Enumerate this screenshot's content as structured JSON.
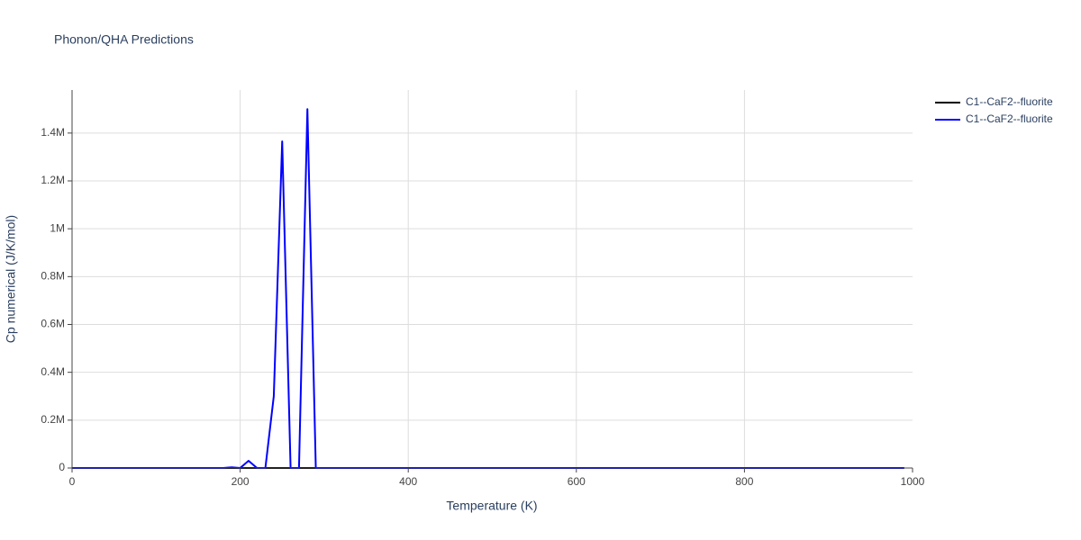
{
  "chart_data": {
    "type": "line",
    "title": "Phonon/QHA Predictions",
    "x_label": "Temperature (K)",
    "y_label": "Cp numerical (J/K/mol)",
    "x": [
      0,
      10,
      20,
      30,
      40,
      50,
      60,
      70,
      80,
      90,
      100,
      110,
      120,
      130,
      140,
      150,
      160,
      170,
      180,
      190,
      200,
      210,
      220,
      230,
      240,
      250,
      260,
      270,
      280,
      290,
      300,
      310,
      320,
      330,
      340,
      350,
      360,
      370,
      380,
      390,
      400,
      410,
      420,
      430,
      440,
      450,
      460,
      470,
      480,
      490,
      500,
      510,
      520,
      530,
      540,
      550,
      560,
      570,
      580,
      590,
      600,
      610,
      620,
      630,
      640,
      650,
      660,
      670,
      680,
      690,
      700,
      710,
      720,
      730,
      740,
      750,
      760,
      770,
      780,
      790,
      800,
      810,
      820,
      830,
      840,
      850,
      860,
      870,
      880,
      890,
      900,
      910,
      920,
      930,
      940,
      950,
      960,
      970,
      980,
      990
    ],
    "series": [
      {
        "name": "C1--CaF2--fluorite",
        "color": "#000000",
        "values": [
          0,
          0,
          0,
          0,
          0,
          0,
          0,
          0,
          0,
          0,
          0,
          0,
          0,
          0,
          0,
          0,
          0,
          0,
          0,
          0,
          0,
          0,
          0,
          0,
          0,
          0,
          0,
          0,
          0,
          0,
          0,
          0,
          0,
          0,
          0,
          0,
          0,
          0,
          0,
          0,
          0,
          0,
          0,
          0,
          0,
          0,
          0,
          0,
          0,
          0,
          0,
          0,
          0,
          0,
          0,
          0,
          0,
          0,
          0,
          0,
          0,
          0,
          0,
          0,
          0,
          0,
          0,
          0,
          0,
          0,
          0,
          0,
          0,
          0,
          0,
          0,
          0,
          0,
          0,
          0,
          0,
          0,
          0,
          0,
          0,
          0,
          0,
          0,
          0,
          0,
          0,
          0,
          0,
          0,
          0,
          0,
          0,
          0,
          0,
          0
        ]
      },
      {
        "name": "C1--CaF2--fluorite",
        "color": "#0000ff",
        "values": [
          0,
          0,
          0,
          0,
          0,
          0,
          0,
          0,
          0,
          0,
          0,
          0,
          0,
          0,
          0,
          0,
          0,
          0,
          0,
          3000,
          0,
          30000,
          0,
          0,
          300000,
          1365000,
          0,
          0,
          1500000,
          0,
          0,
          0,
          0,
          0,
          0,
          0,
          0,
          0,
          0,
          0,
          0,
          0,
          0,
          0,
          0,
          0,
          0,
          0,
          0,
          0,
          0,
          0,
          0,
          0,
          0,
          0,
          0,
          0,
          0,
          0,
          0,
          0,
          0,
          0,
          0,
          0,
          0,
          0,
          0,
          0,
          0,
          0,
          0,
          0,
          0,
          0,
          0,
          0,
          0,
          0,
          0,
          0,
          0,
          0,
          0,
          0,
          0,
          0,
          0,
          0,
          0,
          0,
          0,
          0,
          0,
          0,
          0,
          0,
          0,
          0
        ]
      }
    ],
    "xlim": [
      0,
      1000
    ],
    "xticks": [
      0,
      200,
      400,
      600,
      800,
      1000
    ],
    "ylim": [
      0,
      1580000
    ],
    "yticks": [
      0,
      {
        "value": 200000,
        "label": "0.2M"
      },
      {
        "value": 400000,
        "label": "0.4M"
      },
      {
        "value": 600000,
        "label": "0.6M"
      },
      {
        "value": 800000,
        "label": "0.8M"
      },
      {
        "value": 1000000,
        "label": "1M"
      },
      {
        "value": 1200000,
        "label": "1.2M"
      },
      {
        "value": 1400000,
        "label": "1.4M"
      }
    ],
    "grid": true,
    "legend": "right"
  }
}
